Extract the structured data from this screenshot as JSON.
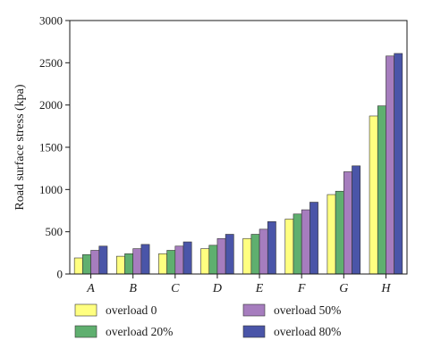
{
  "chart_data": {
    "type": "bar",
    "title": "",
    "xlabel": "",
    "ylabel": "Road surface stress (kpa)",
    "ylim": [
      0,
      3000
    ],
    "yticks": [
      0,
      500,
      1000,
      1500,
      2000,
      2500,
      3000
    ],
    "categories": [
      "A",
      "B",
      "C",
      "D",
      "E",
      "F",
      "G",
      "H"
    ],
    "legend_position": "bottom",
    "grid": false,
    "series": [
      {
        "name": "overload 0",
        "color": "#FFFF80",
        "values": [
          190,
          210,
          240,
          300,
          420,
          650,
          940,
          1870
        ]
      },
      {
        "name": "overload 20%",
        "color": "#5FAF6F",
        "values": [
          230,
          240,
          280,
          340,
          470,
          710,
          980,
          1990
        ]
      },
      {
        "name": "overload 50%",
        "color": "#A67DBE",
        "values": [
          280,
          300,
          330,
          420,
          530,
          760,
          1210,
          2580
        ]
      },
      {
        "name": "overload 80%",
        "color": "#4A55A8",
        "values": [
          330,
          350,
          380,
          470,
          620,
          850,
          1280,
          2610
        ]
      }
    ]
  }
}
